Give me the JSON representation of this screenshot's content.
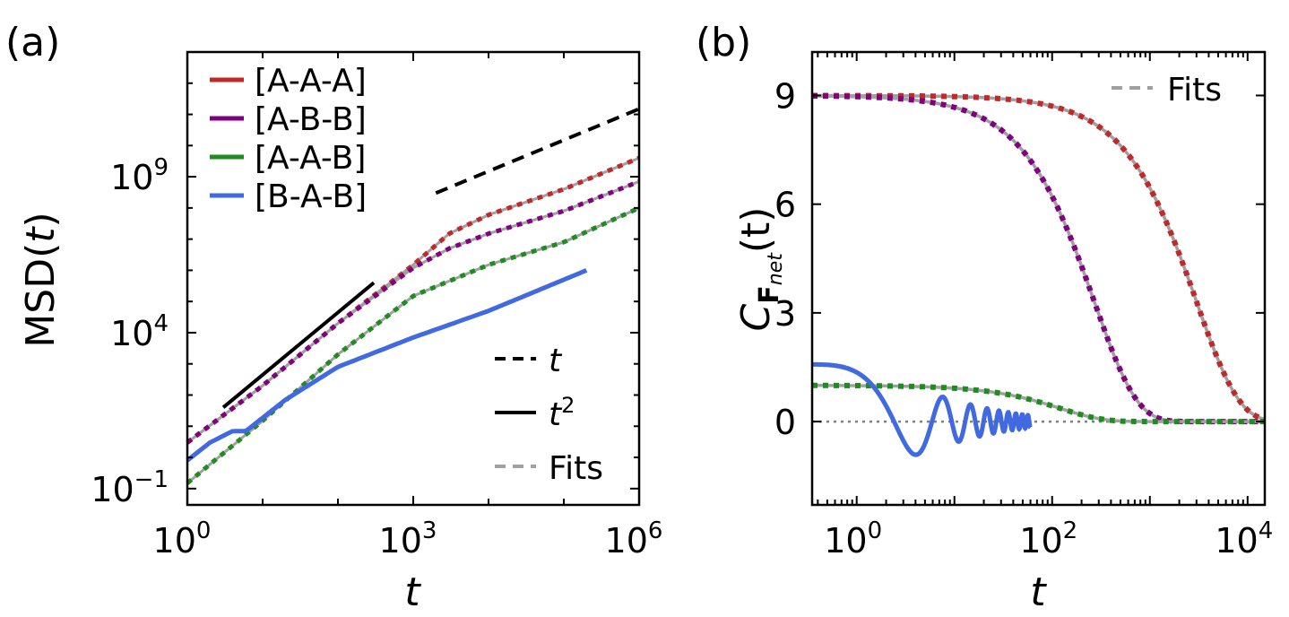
{
  "colors": {
    "A-A-A": "#c0282a",
    "A-B-B": "#800080",
    "A-A-B": "#1e8c1e",
    "B-A-B": "#4169e1",
    "fit": "#a0a0a0",
    "ref": "#000000",
    "zero_line": "#808080"
  },
  "chart_data": [
    {
      "panel": "(a)",
      "type": "line",
      "xlabel": "t",
      "ylabel": "MSD(t)",
      "xscale": "log",
      "yscale": "log",
      "xlim": [
        1,
        1000000
      ],
      "ylim": [
        0.03,
        10000000000000
      ],
      "xticks": [
        1,
        1000,
        1000000
      ],
      "xtick_labels": [
        {
          "base": "10",
          "exp": "0"
        },
        {
          "base": "10",
          "exp": "3"
        },
        {
          "base": "10",
          "exp": "6"
        }
      ],
      "yticks": [
        0.1,
        10000,
        1000000000
      ],
      "ytick_labels": [
        {
          "base": "10",
          "exp": "−1"
        },
        {
          "base": "10",
          "exp": "4"
        },
        {
          "base": "10",
          "exp": "9"
        }
      ],
      "series": [
        {
          "name": "[A-A-A]",
          "color_key": "A-A-A",
          "fit": true,
          "x": [
            1,
            10,
            100,
            1000,
            3000,
            10000,
            100000,
            1000000
          ],
          "y": [
            3,
            200,
            20000,
            1500000,
            15000000,
            60000000,
            400000000,
            4000000000
          ]
        },
        {
          "name": "[A-B-B]",
          "color_key": "A-B-B",
          "fit": true,
          "x": [
            1,
            10,
            100,
            1000,
            3000,
            10000,
            100000,
            1000000
          ],
          "y": [
            3,
            200,
            20000,
            1200000,
            5000000,
            15000000,
            80000000,
            700000000
          ]
        },
        {
          "name": "[A-A-B]",
          "color_key": "A-A-B",
          "fit": true,
          "x": [
            1,
            10,
            100,
            1000,
            10000,
            100000,
            1000000
          ],
          "y": [
            0.15,
            15,
            2000,
            150000,
            1500000,
            8000000,
            100000000
          ]
        },
        {
          "name": "[B-A-B]",
          "color_key": "B-A-B",
          "fit": false,
          "x": [
            1,
            2,
            4,
            6,
            20,
            100,
            1000,
            10000,
            100000,
            200000
          ],
          "y": [
            0.8,
            3,
            7,
            7,
            70,
            800,
            7000,
            50000,
            500000,
            1000000
          ]
        }
      ],
      "reference_lines": [
        {
          "label": "t",
          "style": "dashed",
          "x": [
            2000,
            1000000
          ],
          "y": [
            300000000,
            150000000000
          ]
        },
        {
          "label": "t2",
          "style": "solid",
          "x": [
            3,
            300
          ],
          "y": [
            40,
            400000
          ]
        }
      ],
      "legend": {
        "placement": "top-left",
        "entries": [
          "[A-A-A]",
          "[A-B-B]",
          "[A-A-B]",
          "[B-A-B]"
        ]
      },
      "legend2": {
        "placement": "bottom-right",
        "entries": [
          {
            "label_main": "t",
            "label_sup": "",
            "style": "dashed",
            "color_key": "ref"
          },
          {
            "label_main": "t",
            "label_sup": "2",
            "style": "solid",
            "color_key": "ref"
          },
          {
            "label_main": "Fits",
            "label_sup": "",
            "style": "dashed",
            "color_key": "fit"
          }
        ]
      }
    },
    {
      "panel": "(b)",
      "type": "line",
      "xlabel": "t",
      "ylabel_main": "C",
      "ylabel_sub": "F",
      "ylabel_subsub": "net",
      "ylabel_tail": "(t)",
      "xscale": "log",
      "yscale": "linear",
      "xlim": [
        0.35,
        15000
      ],
      "ylim": [
        -2.3,
        10.2
      ],
      "xticks": [
        1,
        100,
        10000
      ],
      "xtick_labels": [
        {
          "base": "10",
          "exp": "0"
        },
        {
          "base": "10",
          "exp": "2"
        },
        {
          "base": "10",
          "exp": "4"
        }
      ],
      "yticks": [
        0,
        3,
        6,
        9
      ],
      "ytick_labels": [
        "0",
        "3",
        "6",
        "9"
      ],
      "zero_line": true,
      "series": [
        {
          "name": "[A-A-A]",
          "color_key": "A-A-A",
          "fit": true,
          "model": "exp_decay",
          "amplitude": 9,
          "tau": 3000
        },
        {
          "name": "[A-B-B]",
          "color_key": "A-B-B",
          "fit": true,
          "model": "exp_decay",
          "amplitude": 9,
          "tau": 270
        },
        {
          "name": "[A-A-B]",
          "color_key": "A-A-B",
          "fit": true,
          "model": "exp_decay",
          "amplitude": 1,
          "tau": 120
        },
        {
          "name": "[B-A-B]",
          "color_key": "B-A-B",
          "fit": false,
          "model": "damped_oscillation",
          "amplitude": 1.8,
          "t_max": 60
        }
      ],
      "legend": {
        "placement": "top-right",
        "entries": [
          {
            "label": "Fits",
            "style": "dashed",
            "color_key": "fit"
          }
        ]
      }
    }
  ],
  "panel_labels": {
    "a": "(a)",
    "b": "(b)"
  }
}
